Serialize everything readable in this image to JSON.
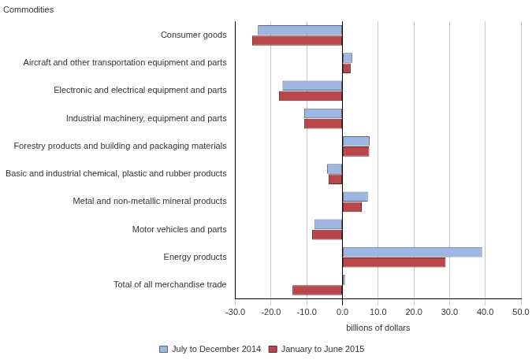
{
  "chart_data": {
    "type": "bar",
    "orientation": "horizontal",
    "ylabel": "Commodities",
    "xlabel": "billions of dollars",
    "categories": [
      "Consumer goods",
      "Aircraft and other transportation equipment and parts",
      "Electronic and electrical equipment and parts",
      "Industrial machinery, equipment and parts",
      "Forestry products and building and packaging materials",
      "Basic and industrial chemical, plastic and rubber products",
      "Metal and non-metallic mineral products",
      "Motor vehicles and parts",
      "Energy products",
      "Total of all merchandise trade"
    ],
    "series": [
      {
        "name": "July to December 2014",
        "color": "#9db7e2",
        "values": [
          -23.7,
          2.8,
          -16.8,
          -10.7,
          7.6,
          -4.3,
          7.1,
          -7.8,
          39.1,
          0.7
        ]
      },
      {
        "name": "January to June 2015",
        "color": "#b9474a",
        "values": [
          -25.3,
          2.3,
          -17.8,
          -10.7,
          7.5,
          -3.9,
          5.4,
          -8.5,
          28.9,
          -14.0
        ]
      }
    ],
    "xlim": [
      -30,
      50
    ],
    "xticks": [
      {
        "value": -30,
        "label": "-30.0"
      },
      {
        "value": -20,
        "label": "-20.0"
      },
      {
        "value": -10,
        "label": "-10.0"
      },
      {
        "value": 0,
        "label": "0.0"
      },
      {
        "value": 10,
        "label": "10.0"
      },
      {
        "value": 20,
        "label": "20.0"
      },
      {
        "value": 30,
        "label": "30.0"
      },
      {
        "value": 40,
        "label": "40.0"
      },
      {
        "value": 50,
        "label": "50.0"
      }
    ],
    "grid": true,
    "legend": "bottom"
  }
}
